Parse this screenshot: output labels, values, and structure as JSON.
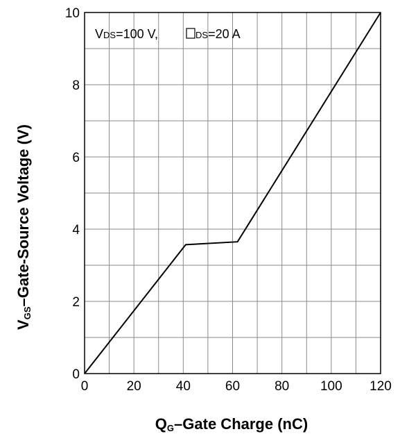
{
  "chart_data": {
    "type": "line",
    "xlim": [
      0,
      120
    ],
    "ylim": [
      0,
      10
    ],
    "x_ticks": [
      0,
      20,
      40,
      60,
      80,
      100,
      120
    ],
    "y_ticks": [
      0,
      2,
      4,
      6,
      8,
      10
    ],
    "grid": true,
    "xlabel": {
      "main": "Q",
      "sub": "G",
      "rest": "–Gate Charge (nC)"
    },
    "ylabel": {
      "main": "V",
      "sub": "GS",
      "rest": "–Gate-Source Voltage (V)"
    },
    "annotation": {
      "v_main": "V",
      "v_sub": "DS",
      "v_rest": "=100 V, ",
      "i_sub": "DS",
      "i_rest": "=20 A"
    },
    "series": [
      {
        "x": [
          0,
          41,
          62,
          120
        ],
        "y": [
          0,
          3.57,
          3.65,
          10
        ]
      }
    ]
  }
}
